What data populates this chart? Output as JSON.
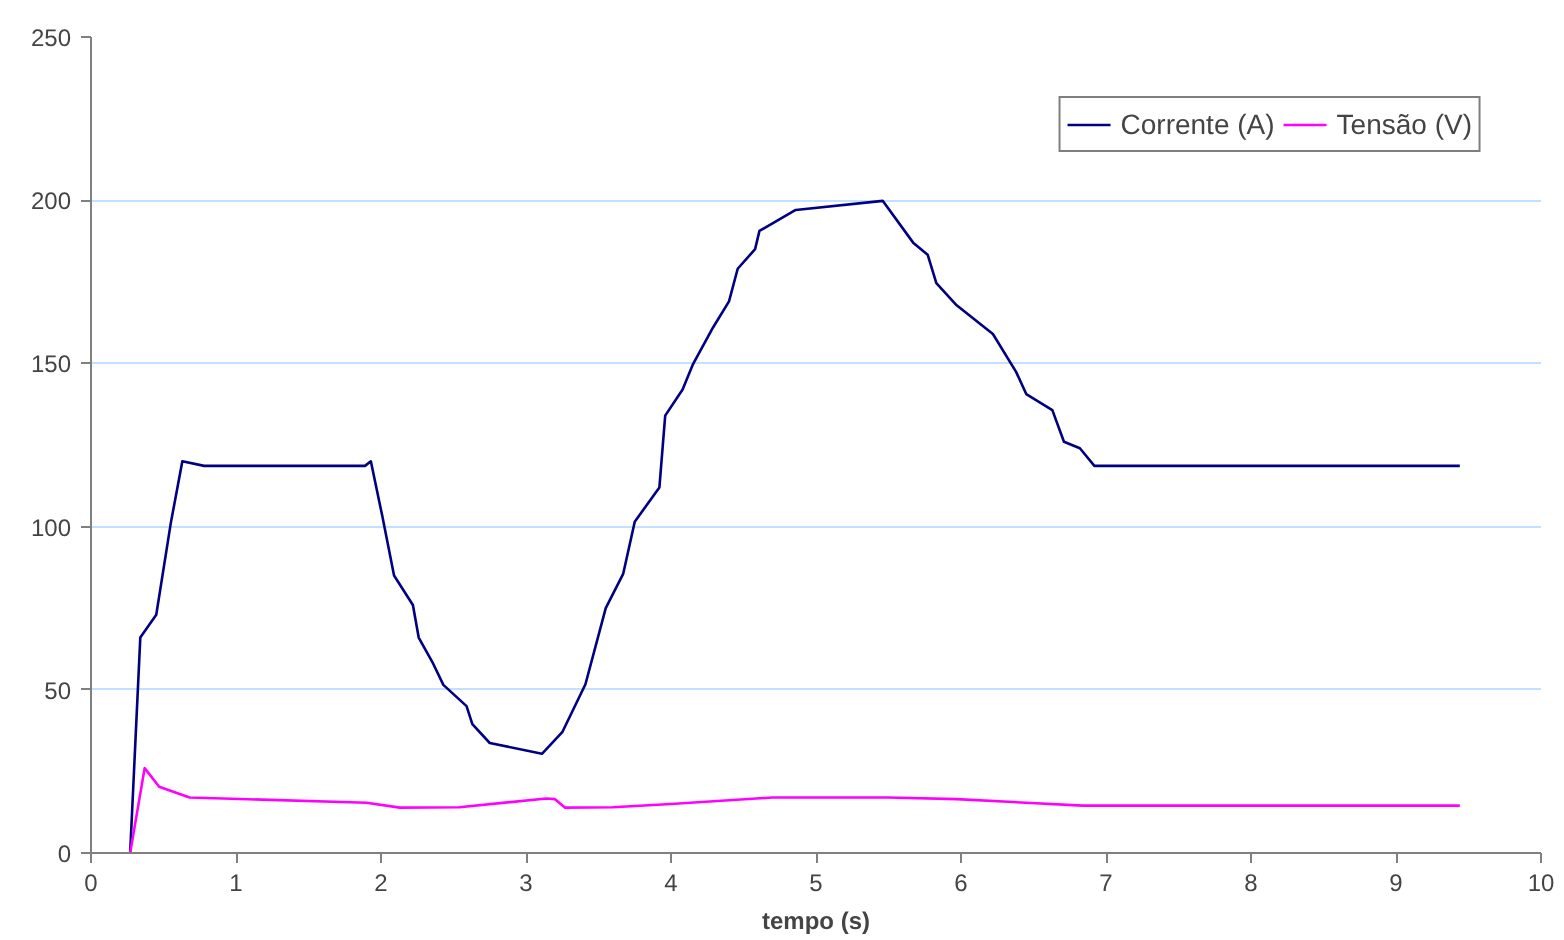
{
  "chart_data": {
    "type": "line",
    "xlabel": "tempo (s)",
    "xlim": [
      0,
      10
    ],
    "ylim": [
      0,
      250
    ],
    "xticks": [
      0,
      1,
      2,
      3,
      4,
      5,
      6,
      7,
      8,
      9,
      10
    ],
    "yticks": [
      0,
      50,
      100,
      150,
      200,
      250
    ],
    "grid": "y",
    "legend": "top right",
    "marker": "none",
    "line_style": "solid",
    "series": [
      {
        "name": "Corrente (A)",
        "color": "#000080",
        "x": [
          0.27,
          0.34,
          0.45,
          0.55,
          0.63,
          0.78,
          1.89,
          1.93,
          2.01,
          2.09,
          2.22,
          2.26,
          2.36,
          2.43,
          2.59,
          2.63,
          2.75,
          3.11,
          3.25,
          3.41,
          3.55,
          3.67,
          3.75,
          3.92,
          3.96,
          4.08,
          4.15,
          4.29,
          4.4,
          4.46,
          4.58,
          4.61,
          4.86,
          5.46,
          5.67,
          5.77,
          5.83,
          5.97,
          6.22,
          6.38,
          6.45,
          6.63,
          6.71,
          6.82,
          6.92,
          9.44
        ],
        "values": [
          0,
          66,
          73,
          101,
          120,
          118.6,
          118.6,
          120,
          103,
          85,
          76,
          66,
          58,
          51.5,
          45,
          39.5,
          33.7,
          30.4,
          37,
          51.7,
          75,
          85.5,
          101.5,
          112,
          134,
          142,
          149.6,
          161,
          169,
          179,
          185,
          190.6,
          197,
          199.8,
          187,
          183.3,
          174.6,
          167.8,
          159,
          147.4,
          140.6,
          135.7,
          126,
          124,
          118.6,
          118.6
        ]
      },
      {
        "name": "Tensão (V)",
        "color": "#ff00ff",
        "x": [
          0.27,
          0.37,
          0.47,
          0.68,
          1.9,
          2.13,
          2.54,
          3.14,
          3.2,
          3.27,
          3.6,
          4.0,
          4.7,
          5.5,
          5.97,
          6.84,
          9.44
        ],
        "values": [
          0,
          26,
          20.3,
          17,
          15.4,
          13.9,
          14,
          16.7,
          16.5,
          13.9,
          14,
          15,
          17,
          17,
          16.5,
          14.5,
          14.5
        ]
      }
    ]
  }
}
